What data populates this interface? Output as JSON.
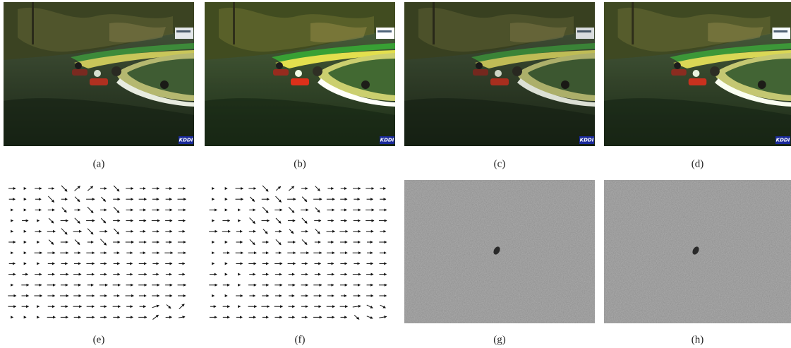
{
  "panels": [
    {
      "caption": "(a)",
      "logo": "KDDI"
    },
    {
      "caption": "(b)",
      "logo": "KDDI"
    },
    {
      "caption": "(c)",
      "logo": "KDDI"
    },
    {
      "caption": "(d)",
      "logo": "KDDI"
    },
    {
      "caption": "(e)"
    },
    {
      "caption": "(f)"
    },
    {
      "caption": "(g)"
    },
    {
      "caption": "(h)"
    }
  ]
}
